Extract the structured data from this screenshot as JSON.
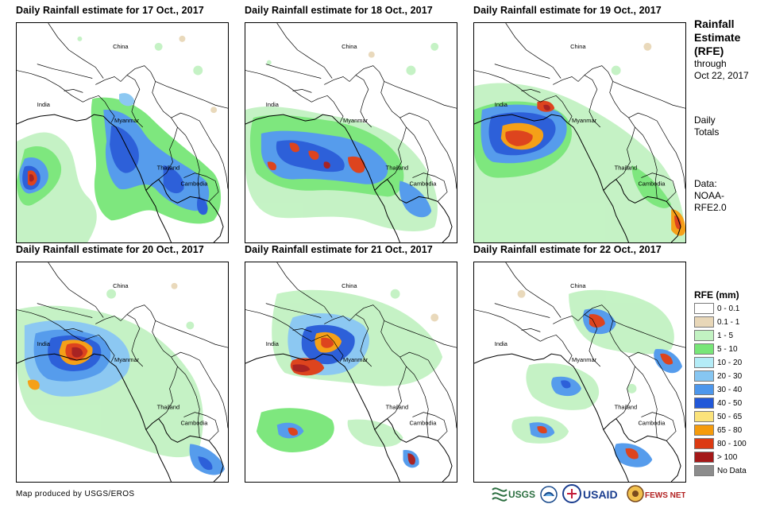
{
  "panels": [
    {
      "title": "Daily Rainfall estimate for 17 Oct., 2017",
      "labels": {
        "china": "China",
        "india": "India",
        "myanmar": "Myanmar",
        "thailand": "Thailand",
        "cambodia": "Cambodia"
      }
    },
    {
      "title": "Daily Rainfall estimate for 18 Oct., 2017",
      "labels": {
        "china": "China",
        "india": "India",
        "myanmar": "Myanmar",
        "thailand": "Thailand",
        "cambodia": "Cambodia"
      }
    },
    {
      "title": "Daily Rainfall estimate for 19 Oct., 2017",
      "labels": {
        "china": "China",
        "india": "India",
        "myanmar": "Myanmar",
        "thailand": "Thailand",
        "cambodia": "Cambodia"
      }
    },
    {
      "title": "Daily Rainfall estimate for 20 Oct., 2017",
      "labels": {
        "china": "China",
        "india": "India",
        "myanmar": "Myanmar",
        "thailand": "Thailand",
        "cambodia": "Cambodia"
      }
    },
    {
      "title": "Daily Rainfall estimate for 21 Oct., 2017",
      "labels": {
        "china": "China",
        "india": "India",
        "myanmar": "Myanmar",
        "thailand": "Thailand",
        "cambodia": "Cambodia"
      }
    },
    {
      "title": "Daily Rainfall estimate for 22 Oct., 2017",
      "labels": {
        "china": "China",
        "india": "India",
        "myanmar": "Myanmar",
        "thailand": "Thailand",
        "cambodia": "Cambodia"
      }
    }
  ],
  "side": {
    "title_line1": "Rainfall",
    "title_line2": "Estimate",
    "title_line3": "(RFE)",
    "through": "through",
    "date": "Oct 22, 2017",
    "daily": "Daily",
    "totals": "Totals",
    "data_line1": "Data:",
    "data_line2": "NOAA-",
    "data_line3": "RFE2.0"
  },
  "legend": {
    "title": "RFE (mm)",
    "items": [
      {
        "label": "0 - 0.1",
        "color": "#ffffff"
      },
      {
        "label": "0.1 - 1",
        "color": "#e8d7b8"
      },
      {
        "label": "1 - 5",
        "color": "#c2f2c2"
      },
      {
        "label": "5 - 10",
        "color": "#78e678"
      },
      {
        "label": "10 - 20",
        "color": "#b4ecf7"
      },
      {
        "label": "20 - 30",
        "color": "#86c6f2"
      },
      {
        "label": "30 - 40",
        "color": "#4d97ec"
      },
      {
        "label": "40 - 50",
        "color": "#2258d8"
      },
      {
        "label": "50 - 65",
        "color": "#fbe37b"
      },
      {
        "label": "65 - 80",
        "color": "#f59b0c"
      },
      {
        "label": "80 - 100",
        "color": "#dc3a12"
      },
      {
        "label": "> 100",
        "color": "#a41818"
      },
      {
        "label": "No Data",
        "color": "#8c8c8c"
      }
    ]
  },
  "credit": "Map produced by USGS/EROS",
  "logos": {
    "usgs": "USGS",
    "usaid": "USAID",
    "fewsnet": "FEWS NET"
  }
}
